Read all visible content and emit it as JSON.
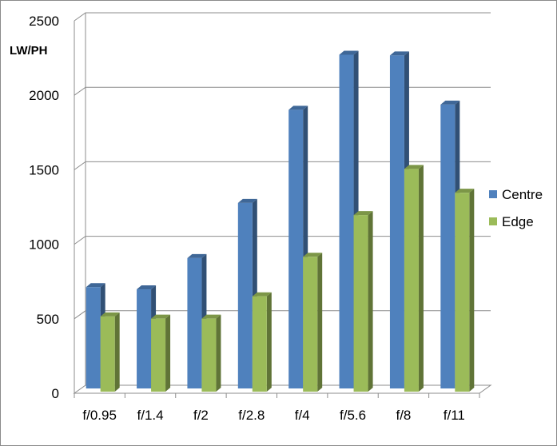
{
  "chart_data": {
    "type": "bar",
    "ylabel": "LW/PH",
    "categories": [
      "f/0.95",
      "f/1.4",
      "f/2",
      "f/2.8",
      "f/4",
      "f/5.6",
      "f/8",
      "f/11"
    ],
    "series": [
      {
        "name": "Centre",
        "values": [
          680,
          665,
          875,
          1245,
          1870,
          2240,
          2235,
          1905
        ],
        "color": "#4F81BD"
      },
      {
        "name": "Edge",
        "values": [
          505,
          490,
          490,
          640,
          905,
          1185,
          1495,
          1335
        ],
        "color": "#9BBB59"
      }
    ],
    "ylim": [
      0,
      2500
    ],
    "yticks": [
      0,
      500,
      1000,
      1500,
      2000,
      2500
    ],
    "grid": true,
    "legend": "right"
  }
}
